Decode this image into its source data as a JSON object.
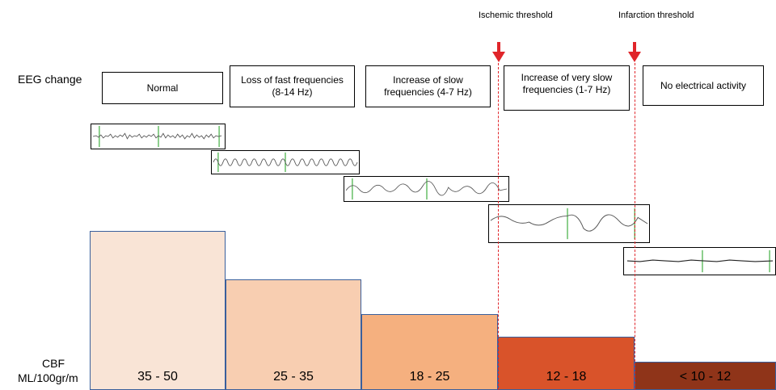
{
  "eeg_change_label": "EEG change",
  "cbf_label_line1": "CBF",
  "cbf_label_line2": "ML/100gr/m",
  "thresholds": {
    "ischemic": "Ischemic threshold",
    "infarction": "Infarction threshold"
  },
  "stages": [
    {
      "label": "Normal"
    },
    {
      "label": "Loss of fast frequencies\n(8-14 Hz)"
    },
    {
      "label": "Increase of slow\nfrequencies (4-7 Hz)"
    },
    {
      "label": "Increase of very slow\nfrequencies (1-7 Hz)"
    },
    {
      "label": "No electrical activity"
    }
  ],
  "cbf_bars": [
    {
      "value": "35 - 50",
      "color": "#f9e4d6",
      "border": "#3a5f9c"
    },
    {
      "value": "25 - 35",
      "color": "#f8ceb1",
      "border": "#3a5f9c"
    },
    {
      "value": "18 - 25",
      "color": "#f5b07f",
      "border": "#3a5f9c"
    },
    {
      "value": "12 - 18",
      "color": "#d9532a",
      "border": "#3a5f9c"
    },
    {
      "value": "< 10 - 12",
      "color": "#8f3419",
      "border": "#3a5f9c"
    }
  ],
  "colors": {
    "threshold_line": "#e0252a",
    "eeg_trace": "#555555",
    "eeg_marker": "#3fae3f"
  }
}
